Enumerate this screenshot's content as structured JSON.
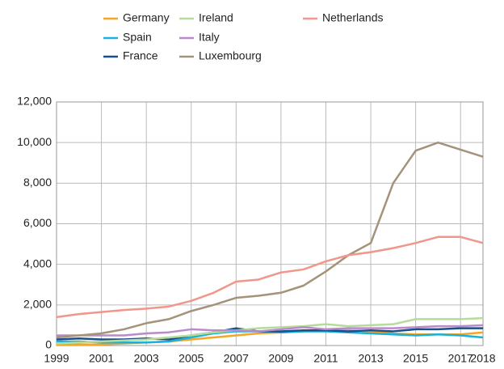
{
  "chart_data": {
    "type": "line",
    "x": [
      1999,
      2000,
      2001,
      2002,
      2003,
      2004,
      2005,
      2006,
      2007,
      2008,
      2009,
      2010,
      2011,
      2012,
      2013,
      2014,
      2015,
      2016,
      2017,
      2018
    ],
    "xlim": [
      1999,
      2018
    ],
    "xticks": [
      1999,
      2001,
      2003,
      2005,
      2007,
      2009,
      2011,
      2013,
      2015,
      2017,
      2018
    ],
    "ylim": [
      0,
      12000
    ],
    "yticks": [
      0,
      {
        "value": 2000,
        "label": "2,000"
      },
      {
        "value": 4000,
        "label": "4,000"
      },
      {
        "value": 6000,
        "label": "6,000"
      },
      {
        "value": 8000,
        "label": "8,000"
      },
      {
        "value": 10000,
        "label": "10,000"
      },
      {
        "value": 12000,
        "label": "12,000"
      }
    ],
    "grid": true,
    "series": [
      {
        "name": "Germany",
        "color": "#f5a623",
        "values": [
          50,
          50,
          50,
          100,
          150,
          200,
          300,
          400,
          500,
          600,
          650,
          700,
          750,
          750,
          700,
          600,
          550,
          550,
          550,
          650
        ]
      },
      {
        "name": "Spain",
        "color": "#1ab0e0",
        "values": [
          200,
          200,
          150,
          150,
          150,
          200,
          400,
          600,
          700,
          700,
          650,
          700,
          700,
          650,
          600,
          550,
          500,
          550,
          500,
          400
        ]
      },
      {
        "name": "France",
        "color": "#1a4f8a",
        "values": [
          300,
          350,
          300,
          300,
          350,
          300,
          500,
          650,
          850,
          700,
          700,
          750,
          750,
          700,
          750,
          700,
          800,
          800,
          850,
          850
        ]
      },
      {
        "name": "Ireland",
        "color": "#b5dc9a",
        "values": [
          100,
          150,
          200,
          250,
          300,
          400,
          500,
          650,
          750,
          850,
          900,
          950,
          1050,
          950,
          1000,
          1050,
          1300,
          1300,
          1300,
          1350
        ]
      },
      {
        "name": "Italy",
        "color": "#b98cc9",
        "values": [
          500,
          500,
          500,
          500,
          600,
          650,
          800,
          750,
          750,
          700,
          800,
          900,
          800,
          850,
          850,
          850,
          900,
          950,
          950,
          1000
        ]
      },
      {
        "name": "Luxembourg",
        "color": "#a3937a",
        "values": [
          400,
          500,
          600,
          800,
          1100,
          1300,
          1700,
          2000,
          2350,
          2450,
          2600,
          2950,
          3650,
          4450,
          5050,
          8000,
          9600,
          10000,
          9650,
          9300
        ]
      },
      {
        "name": "Netherlands",
        "color": "#f0968a",
        "values": [
          1400,
          1550,
          1650,
          1750,
          1820,
          1920,
          2200,
          2600,
          3150,
          3250,
          3600,
          3750,
          4150,
          4450,
          4600,
          4800,
          5050,
          5350,
          5350,
          5050
        ]
      }
    ]
  }
}
